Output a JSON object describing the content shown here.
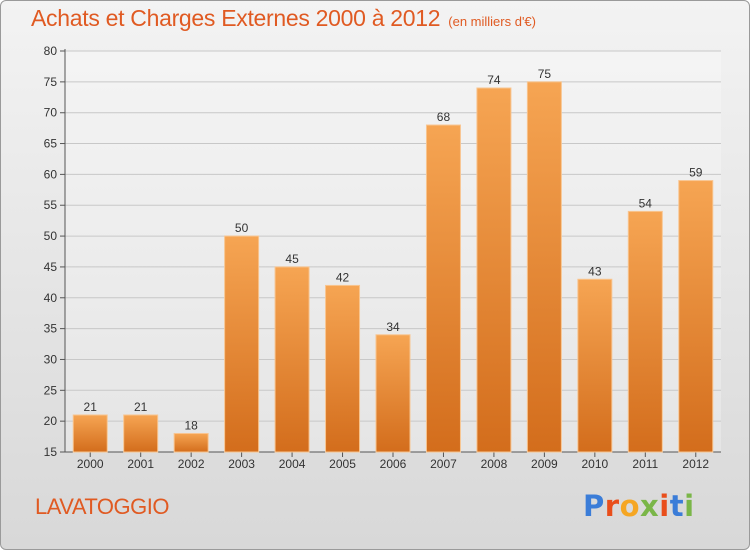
{
  "header": {
    "title": "Achats et Charges Externes 2000 à 2012",
    "unit": "(en milliers d'€)"
  },
  "footer": {
    "location": "LAVATOGGIO",
    "brand_letters": [
      "P",
      "r",
      "o",
      "x",
      "i",
      "t",
      "i"
    ],
    "brand_colors": [
      "#3b7dd8",
      "#e94e1b",
      "#f5a623",
      "#7ab648",
      "#e94e1b",
      "#3b7dd8",
      "#7ab648"
    ]
  },
  "colors": {
    "title": "#e05a22",
    "bar_top": "#f6a553",
    "bar_bottom": "#d36d1c",
    "grid": "#c8c8c8"
  },
  "chart_data": {
    "type": "bar",
    "categories": [
      "2000",
      "2001",
      "2002",
      "2003",
      "2004",
      "2005",
      "2006",
      "2007",
      "2008",
      "2009",
      "2010",
      "2011",
      "2012"
    ],
    "values": [
      21,
      21,
      18,
      50,
      45,
      42,
      34,
      68,
      74,
      75,
      43,
      54,
      59
    ],
    "ylim": [
      15,
      80
    ],
    "yticks": [
      15,
      20,
      25,
      30,
      35,
      40,
      45,
      50,
      55,
      60,
      65,
      70,
      75,
      80
    ],
    "grid": true,
    "legend": "none"
  }
}
